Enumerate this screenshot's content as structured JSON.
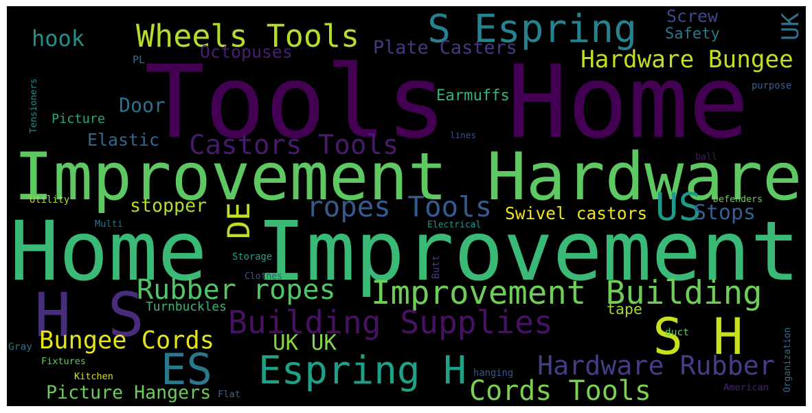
{
  "words": [
    {
      "text": "Tools Home",
      "color": "#440154"
    },
    {
      "text": "Improvement Hardware",
      "color": "#5ec962"
    },
    {
      "text": "Home Improvement",
      "color": "#3aba76"
    },
    {
      "text": "H S",
      "color": "#472d7b"
    },
    {
      "text": "S Espring",
      "color": "#26828e"
    },
    {
      "text": "Wheels Tools",
      "color": "#b5de2b"
    },
    {
      "text": "Hardware Bungee",
      "color": "#c2df23"
    },
    {
      "text": "Castors Tools",
      "color": "#481a6c"
    },
    {
      "text": "ropes Tools",
      "color": "#38598c"
    },
    {
      "text": "Improvement Building",
      "color": "#6ece58"
    },
    {
      "text": "Building Supplies",
      "color": "#471164"
    },
    {
      "text": "Rubber ropes",
      "color": "#52c569"
    },
    {
      "text": "Espring H",
      "color": "#1fa088"
    },
    {
      "text": "Hardware Rubber",
      "color": "#433e85"
    },
    {
      "text": "Cords Tools",
      "color": "#7ad151"
    },
    {
      "text": "S H",
      "color": "#c8e020"
    },
    {
      "text": "ES",
      "color": "#2a788e"
    },
    {
      "text": "Bungee Cords",
      "color": "#e5e419"
    },
    {
      "text": "UK UK",
      "color": "#86d549"
    },
    {
      "text": "Picture Hangers",
      "color": "#6ccd5a"
    },
    {
      "text": "US",
      "color": "#1f9a8a"
    },
    {
      "text": "DE",
      "color": "#bddf26"
    },
    {
      "text": "Plate Casters",
      "color": "#443983"
    },
    {
      "text": "Octopuses",
      "color": "#481f70"
    },
    {
      "text": "hook",
      "color": "#21918c"
    },
    {
      "text": "Screw",
      "color": "#3e4989"
    },
    {
      "text": "Safety",
      "color": "#2a788e"
    },
    {
      "text": "UK",
      "color": "#2c728e"
    },
    {
      "text": "Door",
      "color": "#2c728e"
    },
    {
      "text": "Earmuffs",
      "color": "#35b779"
    },
    {
      "text": "Elastic",
      "color": "#31688e"
    },
    {
      "text": "Picture",
      "color": "#22a785"
    },
    {
      "text": "stopper",
      "color": "#b2dd2d"
    },
    {
      "text": "Swivel castors",
      "color": "#f1e51d"
    },
    {
      "text": "Stops",
      "color": "#355f8d"
    },
    {
      "text": "Turnbuckles",
      "color": "#38b977"
    },
    {
      "text": "tape",
      "color": "#a2da37"
    },
    {
      "text": "Tensioners",
      "color": "#228c8d"
    },
    {
      "text": "PL",
      "color": "#2b758e"
    },
    {
      "text": "purpose",
      "color": "#34618d"
    },
    {
      "text": "lines",
      "color": "#3b528b"
    },
    {
      "text": "ball",
      "color": "#481769"
    },
    {
      "text": "Utility",
      "color": "#addc30"
    },
    {
      "text": "Defenders",
      "color": "#6ccd5a"
    },
    {
      "text": "Multi",
      "color": "#2c728e"
    },
    {
      "text": "Electrical",
      "color": "#1f968b"
    },
    {
      "text": "Storage",
      "color": "#1fa287"
    },
    {
      "text": "Clothes",
      "color": "#39558c"
    },
    {
      "text": "Butt",
      "color": "#453882"
    },
    {
      "text": "Gray",
      "color": "#2d708e"
    },
    {
      "text": "duct",
      "color": "#5ec962"
    },
    {
      "text": "Organization",
      "color": "#2d708e"
    },
    {
      "text": "Fixtures",
      "color": "#63cb5f"
    },
    {
      "text": "Kitchen",
      "color": "#d8e219"
    },
    {
      "text": "hanging",
      "color": "#3a548c"
    },
    {
      "text": "Flat",
      "color": "#31678e"
    },
    {
      "text": "American",
      "color": "#482475"
    }
  ]
}
